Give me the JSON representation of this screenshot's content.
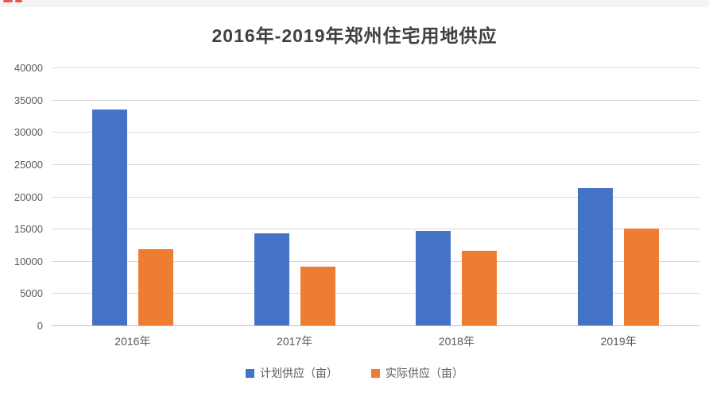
{
  "page": {
    "top_strip_color": "#f5f4f4",
    "red_mark_color": "#e05a52",
    "background_color": "#ffffff"
  },
  "chart_data": {
    "type": "bar",
    "title": "2016年-2019年郑州住宅用地供应",
    "categories": [
      "2016年",
      "2017年",
      "2018年",
      "2019年"
    ],
    "series": [
      {
        "name": "计划供应（亩）",
        "color": "#4472C4",
        "values": [
          33500,
          14300,
          14600,
          21300
        ]
      },
      {
        "name": "实际供应（亩）",
        "color": "#ED7D31",
        "values": [
          11800,
          9100,
          11600,
          15000
        ]
      }
    ],
    "xlabel": "",
    "ylabel": "",
    "ylim": [
      0,
      40000
    ],
    "ytick_step": 5000,
    "yticks": [
      0,
      5000,
      10000,
      15000,
      20000,
      25000,
      30000,
      35000,
      40000
    ],
    "grid": "horizontal",
    "gridline_color": "#d9d9d9",
    "axis_line_color": "#bfbfbf",
    "text_color": "#595959",
    "title_color": "#404040",
    "legend_position": "bottom"
  }
}
